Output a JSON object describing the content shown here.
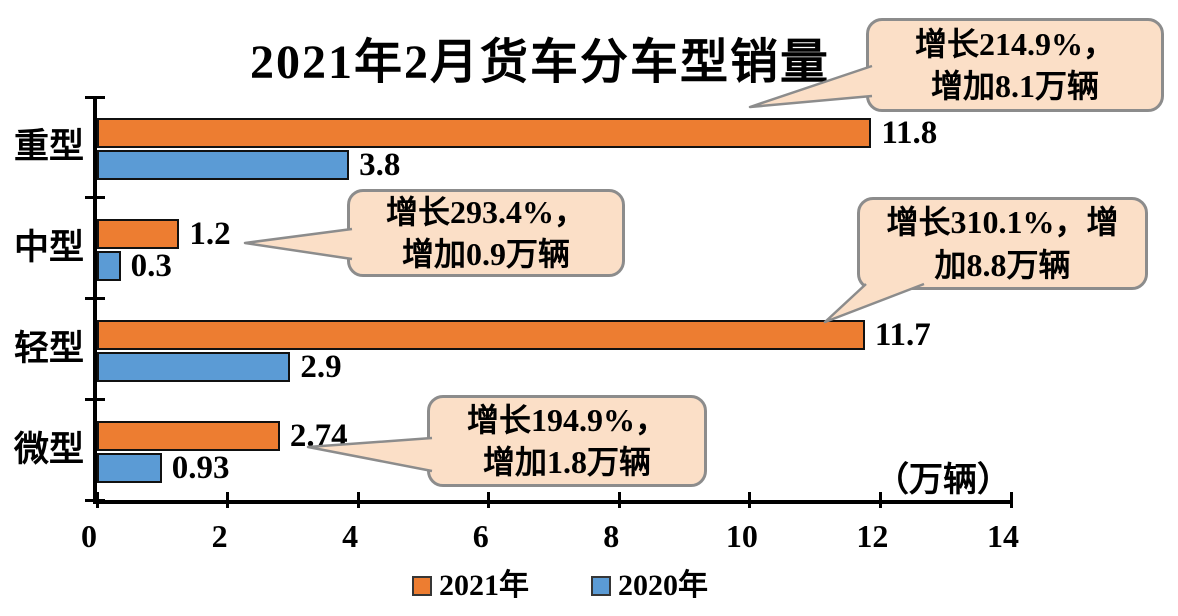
{
  "title": "2021年2月货车分车型销量",
  "unit_label": "（万辆）",
  "colors": {
    "bar_2021": "#ED7D31",
    "bar_2020": "#5B9BD5",
    "bar_border": "#111111",
    "callout_fill": "#FBDFC7",
    "callout_border": "#8C8C8C",
    "axis": "#000000"
  },
  "legend": {
    "items": [
      {
        "label": "2021年",
        "color": "#ED7D31"
      },
      {
        "label": "2020年",
        "color": "#5B9BD5"
      }
    ]
  },
  "chart_data": {
    "type": "bar",
    "orientation": "horizontal",
    "title": "2021年2月货车分车型销量",
    "categories": [
      "重型",
      "中型",
      "轻型",
      "微型"
    ],
    "series": [
      {
        "name": "2021年",
        "color": "#ED7D31",
        "values": [
          11.8,
          1.2,
          11.7,
          2.74
        ]
      },
      {
        "name": "2020年",
        "color": "#5B9BD5",
        "values": [
          3.8,
          0.3,
          2.9,
          0.93
        ]
      }
    ],
    "x_unit_label": "（万辆）",
    "xlim": [
      0,
      14
    ],
    "xticks": [
      0,
      2,
      4,
      6,
      8,
      10,
      12,
      14
    ],
    "grid": false,
    "legend_position": "bottom",
    "annotations": [
      {
        "target": "重型",
        "line1": "增长214.9%，",
        "line2": "增加8.1万辆"
      },
      {
        "target": "中型",
        "line1": "增长293.4%，",
        "line2": "增加0.9万辆"
      },
      {
        "target": "轻型",
        "line1": "增长310.1%，增",
        "line2": "加8.8万辆"
      },
      {
        "target": "微型",
        "line1": "增长194.9%，",
        "line2": "增加1.8万辆"
      }
    ]
  }
}
